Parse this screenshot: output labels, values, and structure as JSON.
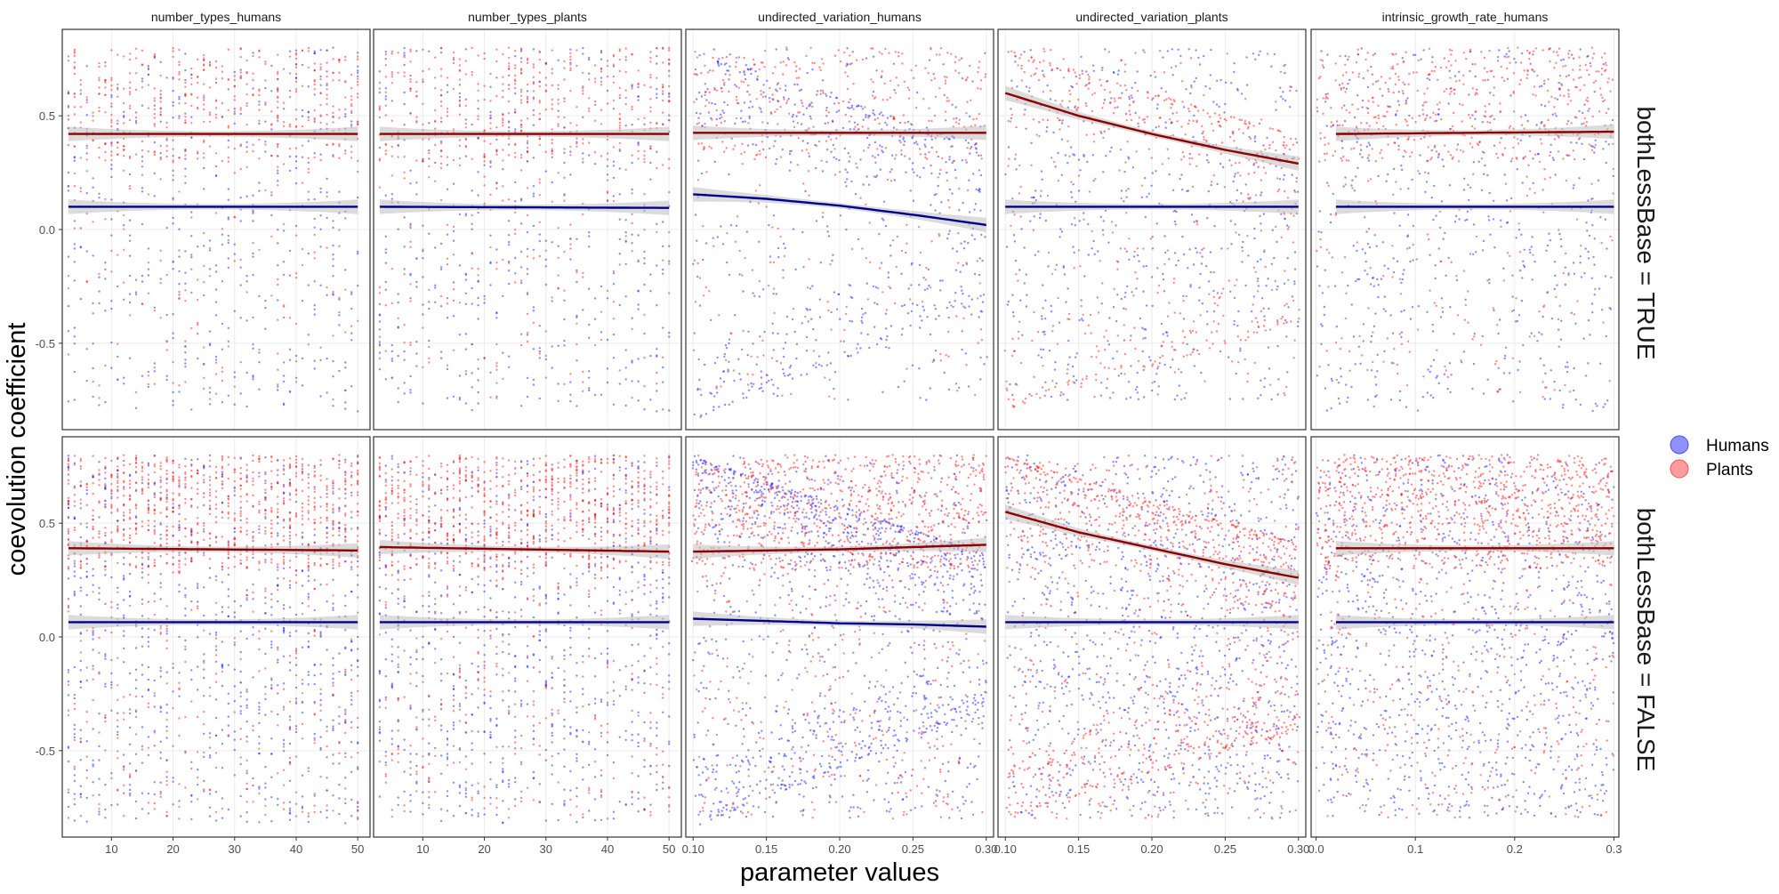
{
  "chart_data": {
    "type": "scatter",
    "xlabel": "parameter values",
    "ylabel": "coevolution coefficient",
    "ylim": [
      -0.88,
      0.88
    ],
    "y_ticks": [
      -0.5,
      0.0,
      0.5
    ],
    "y_tick_labels": [
      "-0.5",
      "0.0",
      "0.5"
    ],
    "grid": true,
    "legend_position": "right",
    "legend": [
      {
        "name": "Humans",
        "color": "#6b6bff"
      },
      {
        "name": "Plants",
        "color": "#ff7b7b"
      }
    ],
    "colors": {
      "humans_points": "#0000ff",
      "plants_points": "#ff0000",
      "humans_line": "#00008b",
      "plants_line": "#8b0000",
      "ribbon": "#bdbdbd",
      "grid": "#ebebeb",
      "panel_border": "#333333"
    },
    "row_labels": [
      "bothLessBase = TRUE",
      "bothLessBase = FALSE"
    ],
    "panels": [
      {
        "title": "number_types_humans",
        "xlim": [
          2,
          52
        ],
        "x_ticks": [
          10,
          20,
          30,
          40,
          50
        ],
        "x_tick_labels": [
          "10",
          "20",
          "30",
          "40",
          "50"
        ],
        "discrete": true,
        "rows": [
          {
            "humans_fit": {
              "x": [
                3,
                50
              ],
              "y": [
                0.1,
                0.1
              ]
            },
            "plants_fit": {
              "x": [
                3,
                50
              ],
              "y": [
                0.42,
                0.42
              ]
            },
            "humans_cloud": {
              "density": 0.35,
              "ymin": -0.8,
              "ymax": 0.8
            },
            "plants_cloud": {
              "density": 0.45,
              "ymin": -0.75,
              "ymax": 0.8
            }
          },
          {
            "humans_fit": {
              "x": [
                3,
                50
              ],
              "y": [
                0.065,
                0.065
              ]
            },
            "plants_fit": {
              "x": [
                3,
                50
              ],
              "y": [
                0.39,
                0.38
              ]
            },
            "humans_cloud": {
              "density": 0.6,
              "ymin": -0.82,
              "ymax": 0.8
            },
            "plants_cloud": {
              "density": 0.85,
              "ymin": -0.8,
              "ymax": 0.8
            }
          }
        ]
      },
      {
        "title": "number_types_plants",
        "xlim": [
          2,
          52
        ],
        "x_ticks": [
          10,
          20,
          30,
          40,
          50
        ],
        "x_tick_labels": [
          "10",
          "20",
          "30",
          "40",
          "50"
        ],
        "discrete": true,
        "rows": [
          {
            "humans_fit": {
              "x": [
                3,
                50
              ],
              "y": [
                0.1,
                0.095
              ]
            },
            "plants_fit": {
              "x": [
                3,
                50
              ],
              "y": [
                0.42,
                0.42
              ]
            },
            "humans_cloud": {
              "density": 0.35,
              "ymin": -0.8,
              "ymax": 0.8
            },
            "plants_cloud": {
              "density": 0.45,
              "ymin": -0.75,
              "ymax": 0.8
            }
          },
          {
            "humans_fit": {
              "x": [
                3,
                50
              ],
              "y": [
                0.065,
                0.065
              ]
            },
            "plants_fit": {
              "x": [
                3,
                50
              ],
              "y": [
                0.395,
                0.375
              ]
            },
            "humans_cloud": {
              "density": 0.6,
              "ymin": -0.82,
              "ymax": 0.8
            },
            "plants_cloud": {
              "density": 0.85,
              "ymin": -0.8,
              "ymax": 0.8
            }
          }
        ]
      },
      {
        "title": "undirected_variation_humans",
        "xlim": [
          0.095,
          0.305
        ],
        "x_ticks": [
          0.1,
          0.15,
          0.2,
          0.25,
          0.3
        ],
        "x_tick_labels": [
          "0.10",
          "0.15",
          "0.20",
          "0.25",
          "0.30"
        ],
        "discrete": false,
        "rows": [
          {
            "humans_fit": {
              "x": [
                0.1,
                0.15,
                0.2,
                0.25,
                0.3
              ],
              "y": [
                0.155,
                0.135,
                0.105,
                0.065,
                0.02
              ]
            },
            "plants_fit": {
              "x": [
                0.1,
                0.3
              ],
              "y": [
                0.425,
                0.425
              ]
            },
            "humans_cloud": {
              "density": 0.5,
              "ymin": -0.75,
              "ymax": 0.8,
              "upper_from": 0.8,
              "upper_to": 0.35,
              "lower_from": -0.85,
              "lower_to": -0.3
            },
            "plants_cloud": {
              "density": 0.35,
              "ymin": -0.75,
              "ymax": 0.8
            }
          },
          {
            "humans_fit": {
              "x": [
                0.1,
                0.15,
                0.2,
                0.25,
                0.3
              ],
              "y": [
                0.08,
                0.07,
                0.06,
                0.055,
                0.045
              ]
            },
            "plants_fit": {
              "x": [
                0.1,
                0.15,
                0.2,
                0.25,
                0.3
              ],
              "y": [
                0.375,
                0.38,
                0.385,
                0.395,
                0.405
              ]
            },
            "humans_cloud": {
              "density": 0.95,
              "ymin": -0.8,
              "ymax": 0.8,
              "upper_from": 0.8,
              "upper_to": 0.35,
              "lower_from": -0.85,
              "lower_to": -0.3
            },
            "plants_cloud": {
              "density": 0.85,
              "ymin": -0.8,
              "ymax": 0.8
            }
          }
        ]
      },
      {
        "title": "undirected_variation_plants",
        "xlim": [
          0.095,
          0.305
        ],
        "x_ticks": [
          0.1,
          0.15,
          0.2,
          0.25,
          0.3
        ],
        "x_tick_labels": [
          "0.10",
          "0.15",
          "0.20",
          "0.25",
          "0.30"
        ],
        "discrete": false,
        "rows": [
          {
            "humans_fit": {
              "x": [
                0.1,
                0.3
              ],
              "y": [
                0.1,
                0.1
              ]
            },
            "plants_fit": {
              "x": [
                0.1,
                0.15,
                0.2,
                0.25,
                0.3
              ],
              "y": [
                0.6,
                0.5,
                0.42,
                0.35,
                0.29
              ]
            },
            "humans_cloud": {
              "density": 0.4,
              "ymin": -0.75,
              "ymax": 0.8
            },
            "plants_cloud": {
              "density": 0.45,
              "ymin": -0.75,
              "ymax": 0.8,
              "upper_from": 0.8,
              "upper_to": 0.4,
              "lower_from": -0.8,
              "lower_to": -0.4
            }
          },
          {
            "humans_fit": {
              "x": [
                0.1,
                0.3
              ],
              "y": [
                0.065,
                0.065
              ]
            },
            "plants_fit": {
              "x": [
                0.1,
                0.15,
                0.2,
                0.25,
                0.3
              ],
              "y": [
                0.55,
                0.46,
                0.39,
                0.32,
                0.26
              ]
            },
            "humans_cloud": {
              "density": 0.75,
              "ymin": -0.8,
              "ymax": 0.8
            },
            "plants_cloud": {
              "density": 0.95,
              "ymin": -0.8,
              "ymax": 0.8,
              "upper_from": 0.8,
              "upper_to": 0.4,
              "lower_from": -0.8,
              "lower_to": -0.4
            }
          }
        ]
      },
      {
        "title": "intrinsic_growth_rate_humans",
        "xlim": [
          -0.005,
          0.305
        ],
        "x_ticks": [
          0.0,
          0.1,
          0.2,
          0.3
        ],
        "x_tick_labels": [
          "0.0",
          "0.1",
          "0.2",
          "0.3"
        ],
        "discrete": false,
        "rows": [
          {
            "humans_fit": {
              "x": [
                0.02,
                0.3
              ],
              "y": [
                0.1,
                0.1
              ]
            },
            "plants_fit": {
              "x": [
                0.02,
                0.15,
                0.3
              ],
              "y": [
                0.42,
                0.425,
                0.43
              ]
            },
            "humans_cloud": {
              "density": 0.4,
              "ymin": -0.8,
              "ymax": 0.8
            },
            "plants_cloud": {
              "density": 0.45,
              "ymin": -0.75,
              "ymax": 0.8
            }
          },
          {
            "humans_fit": {
              "x": [
                0.02,
                0.3
              ],
              "y": [
                0.065,
                0.065
              ]
            },
            "plants_fit": {
              "x": [
                0.02,
                0.3
              ],
              "y": [
                0.39,
                0.39
              ]
            },
            "humans_cloud": {
              "density": 0.75,
              "ymin": -0.8,
              "ymax": 0.8
            },
            "plants_cloud": {
              "density": 0.95,
              "ymin": -0.8,
              "ymax": 0.8
            }
          }
        ]
      }
    ]
  }
}
